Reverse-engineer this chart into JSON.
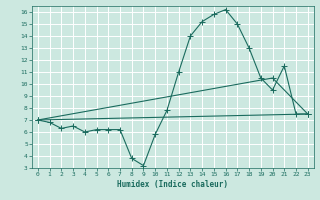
{
  "xlabel": "Humidex (Indice chaleur)",
  "xlim": [
    -0.5,
    23.5
  ],
  "ylim": [
    3,
    16.5
  ],
  "yticks": [
    3,
    4,
    5,
    6,
    7,
    8,
    9,
    10,
    11,
    12,
    13,
    14,
    15,
    16
  ],
  "xticks": [
    0,
    1,
    2,
    3,
    4,
    5,
    6,
    7,
    8,
    9,
    10,
    11,
    12,
    13,
    14,
    15,
    16,
    17,
    18,
    19,
    20,
    21,
    22,
    23
  ],
  "bg_color": "#cce8e0",
  "grid_color": "#ffffff",
  "line_color": "#1a6b5e",
  "line1_x": [
    0,
    1,
    2,
    3,
    4,
    5,
    6,
    7,
    8,
    9,
    10,
    11,
    12,
    13,
    14,
    15,
    16,
    17,
    18,
    19,
    20,
    21,
    22,
    23
  ],
  "line1_y": [
    7.0,
    6.8,
    6.3,
    6.5,
    6.0,
    6.2,
    6.2,
    6.2,
    3.8,
    3.2,
    5.8,
    7.8,
    11.0,
    14.0,
    15.2,
    15.8,
    16.2,
    15.0,
    13.0,
    10.5,
    9.5,
    11.5,
    7.5,
    7.5
  ],
  "line2_x": [
    0,
    23
  ],
  "line2_y": [
    7.0,
    7.5
  ],
  "line3_x": [
    0,
    20,
    23
  ],
  "line3_y": [
    7.0,
    10.5,
    7.5
  ]
}
